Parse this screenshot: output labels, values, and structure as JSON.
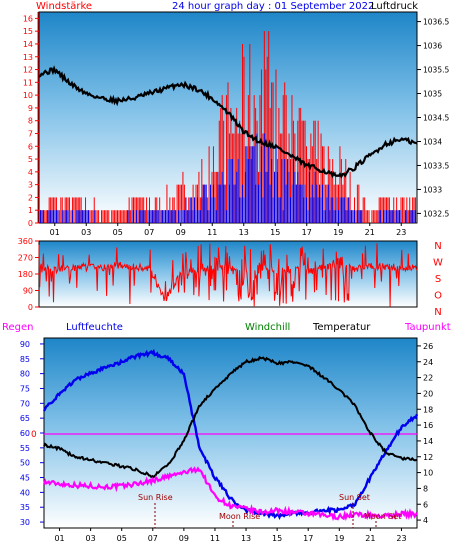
{
  "header": {
    "left_label": "Windstärke",
    "center_title": "24 hour graph day : 01 September 2022",
    "right_label": "Luftdruck"
  },
  "panel2": {
    "dir_letters": [
      "N",
      "W",
      "S",
      "O",
      "N"
    ],
    "dir_ticks": [
      "360",
      "270",
      "180",
      "90",
      "0"
    ]
  },
  "panel3_header": {
    "regen": "Regen",
    "luftfeuchte": "Luftfeuchte",
    "windchill": "Windchill",
    "temperatur": "Temperatur",
    "taupunkt": "Taupunkt"
  },
  "annotations": {
    "sun_rise": "Sun Rise",
    "sun_set": "Sun Set",
    "moon_rise": "Moon Rise",
    "moon_set": "Moon Set",
    "rain_zero": "0"
  },
  "colors": {
    "red": "#ff0000",
    "blue": "#0000ee",
    "black": "#000000",
    "magenta": "#ff00ff",
    "green": "#008000",
    "sky_top": "#1e86c8",
    "sky_bottom": "#ffffff"
  },
  "chart_data": [
    {
      "type": "bar",
      "panel": "wind_pressure",
      "x_tick_labels": [
        "01",
        "03",
        "05",
        "07",
        "09",
        "11",
        "13",
        "15",
        "17",
        "19",
        "21",
        "23"
      ],
      "left_axis": {
        "label": "Windstärke",
        "ticks": [
          "0",
          "1",
          "2",
          "3",
          "4",
          "5",
          "6",
          "7",
          "8",
          "9",
          "10",
          "11",
          "12",
          "13",
          "14",
          "15",
          "16"
        ],
        "range": [
          0,
          16.5
        ]
      },
      "right_axis": {
        "label": "Luftdruck",
        "ticks": [
          "1032.5",
          "1033",
          "1033.5",
          "1034",
          "1034.5",
          "1035",
          "1035.5",
          "1036",
          "1036.5"
        ],
        "range": [
          1032.3,
          1036.7
        ]
      },
      "pressure": {
        "hours": [
          0,
          1,
          2,
          3,
          4,
          5,
          6,
          7,
          8,
          9,
          10,
          11,
          12,
          13,
          14,
          15,
          16,
          17,
          18,
          19,
          20,
          21,
          22,
          23,
          24
        ],
        "values": [
          1035.4,
          1035.5,
          1035.2,
          1035.0,
          1034.9,
          1034.85,
          1034.9,
          1035.0,
          1035.1,
          1035.2,
          1035.1,
          1034.9,
          1034.6,
          1034.2,
          1034.0,
          1033.9,
          1033.7,
          1033.5,
          1033.4,
          1033.25,
          1033.45,
          1033.7,
          1033.95,
          1034.05,
          1033.95
        ]
      },
      "wind_gust": {
        "hours": [
          0,
          1,
          2,
          3,
          4,
          5,
          6,
          7,
          8,
          9,
          10,
          11,
          12,
          13,
          14,
          15,
          16,
          17,
          18,
          19,
          20,
          21,
          22,
          23,
          24
        ],
        "values": [
          1,
          2,
          2,
          2,
          1,
          1,
          2,
          2,
          2,
          3,
          3,
          7,
          9,
          11,
          12,
          10,
          9,
          7,
          6,
          5,
          3,
          1,
          2,
          2,
          2
        ]
      },
      "wind_avg": {
        "hours": [
          0,
          1,
          2,
          3,
          4,
          5,
          6,
          7,
          8,
          9,
          10,
          11,
          12,
          13,
          14,
          15,
          16,
          17,
          18,
          19,
          20,
          21,
          22,
          23,
          24
        ],
        "values": [
          1,
          1,
          1,
          1,
          0,
          0,
          1,
          1,
          1,
          1,
          2,
          3,
          4,
          5,
          6,
          5,
          4,
          3,
          3,
          2,
          1,
          0,
          1,
          1,
          1
        ]
      }
    },
    {
      "type": "line",
      "panel": "wind_direction",
      "y_ticks": [
        "0",
        "90",
        "180",
        "270",
        "360"
      ],
      "range": [
        0,
        360
      ],
      "hours": [
        0,
        1,
        2,
        3,
        4,
        5,
        6,
        7,
        8,
        9,
        10,
        11,
        12,
        13,
        14,
        15,
        16,
        17,
        18,
        19,
        20,
        21,
        22,
        23,
        24
      ],
      "direction_deg": [
        220,
        200,
        215,
        220,
        210,
        230,
        220,
        210,
        40,
        180,
        200,
        210,
        220,
        190,
        220,
        200,
        210,
        200,
        220,
        230,
        210,
        220,
        220,
        215,
        220
      ]
    },
    {
      "type": "line",
      "panel": "humidity_temperature",
      "x_tick_labels": [
        "01",
        "03",
        "05",
        "07",
        "09",
        "11",
        "13",
        "15",
        "17",
        "19",
        "21",
        "23"
      ],
      "left_axis": {
        "label": "Luftfeuchte",
        "ticks": [
          "30",
          "35",
          "40",
          "45",
          "50",
          "55",
          "60",
          "65",
          "70",
          "75",
          "80",
          "85",
          "90"
        ],
        "range": [
          28,
          92
        ]
      },
      "right_axis": {
        "label": "Temperatur",
        "ticks": [
          "4",
          "6",
          "8",
          "10",
          "12",
          "14",
          "16",
          "18",
          "20",
          "22",
          "24",
          "26"
        ],
        "range": [
          3,
          27
        ]
      },
      "humidity": {
        "hours": [
          0,
          1,
          2,
          3,
          4,
          5,
          6,
          7,
          8,
          9,
          10,
          11,
          12,
          13,
          14,
          15,
          16,
          17,
          18,
          19,
          20,
          21,
          22,
          23,
          24
        ],
        "values": [
          68,
          73,
          78,
          80,
          82,
          84,
          86,
          87,
          85,
          80,
          55,
          45,
          38,
          34,
          33,
          32,
          33,
          33,
          34,
          34,
          36,
          45,
          54,
          62,
          66
        ]
      },
      "temperature": {
        "hours": [
          0,
          1,
          2,
          3,
          4,
          5,
          6,
          7,
          8,
          9,
          10,
          11,
          12,
          13,
          14,
          15,
          16,
          17,
          18,
          19,
          20,
          21,
          22,
          23,
          24
        ],
        "values": [
          13.5,
          13.0,
          12.0,
          11.6,
          11.2,
          10.8,
          10.3,
          9.5,
          11.0,
          14.0,
          18.5,
          20.5,
          22.5,
          24.0,
          24.5,
          23.8,
          24.0,
          23.5,
          22.0,
          20.5,
          18.5,
          15.0,
          12.5,
          11.8,
          11.6
        ]
      },
      "dewpoint": {
        "hours": [
          0,
          1,
          2,
          3,
          4,
          5,
          6,
          7,
          8,
          9,
          10,
          11,
          12,
          13,
          14,
          15,
          16,
          17,
          18,
          19,
          20,
          21,
          22,
          23,
          24
        ],
        "values": [
          8.8,
          8.6,
          8.4,
          8.3,
          8.2,
          8.3,
          8.6,
          9.0,
          9.5,
          10.0,
          10.5,
          7.0,
          5.8,
          5.4,
          5.0,
          5.2,
          5.0,
          4.8,
          4.6,
          4.4,
          4.7,
          4.6,
          4.5,
          4.8,
          4.7
        ]
      }
    }
  ]
}
